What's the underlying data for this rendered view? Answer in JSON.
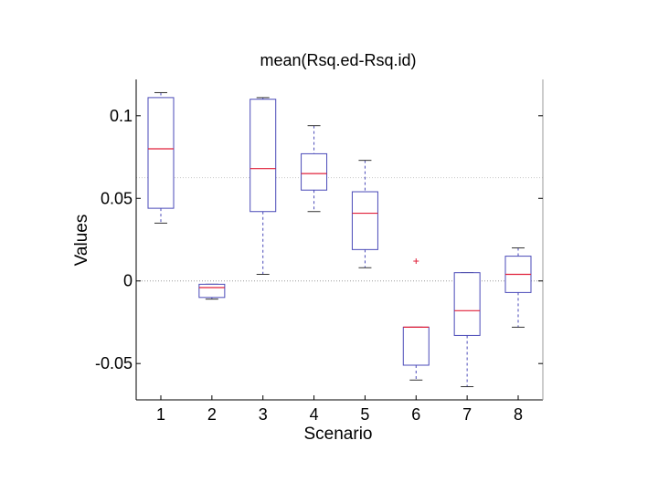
{
  "chart_data": {
    "type": "box",
    "title": "mean(Rsq.ed-Rsq.id)",
    "xlabel": "Scenario",
    "ylabel": "Values",
    "ylim": [
      -0.072,
      0.122
    ],
    "yticks": [
      -0.05,
      0,
      0.05,
      0.1
    ],
    "ytick_labels": [
      "-0.05",
      "0",
      "0.05",
      "0.1"
    ],
    "reference_lines": [
      0.0625,
      0
    ],
    "colors": {
      "box": "#4a4ab8",
      "median": "#e0203a",
      "whisker": "#4a4ab8",
      "outlier": "#e0203a",
      "axis": "#000000"
    },
    "categories": [
      "1",
      "2",
      "3",
      "4",
      "5",
      "6",
      "7",
      "8"
    ],
    "boxes": [
      {
        "label": "1",
        "min": 0.035,
        "q1": 0.044,
        "median": 0.08,
        "q3": 0.111,
        "max": 0.114
      },
      {
        "label": "2",
        "min": -0.011,
        "q1": -0.01,
        "median": -0.004,
        "q3": -0.002,
        "max": -0.002
      },
      {
        "label": "3",
        "min": 0.004,
        "q1": 0.042,
        "median": 0.068,
        "q3": 0.11,
        "max": 0.111
      },
      {
        "label": "4",
        "min": 0.042,
        "q1": 0.055,
        "median": 0.065,
        "q3": 0.077,
        "max": 0.094
      },
      {
        "label": "5",
        "min": 0.008,
        "q1": 0.019,
        "median": 0.041,
        "q3": 0.054,
        "max": 0.073
      },
      {
        "label": "6",
        "min": -0.06,
        "q1": -0.051,
        "median": -0.028,
        "q3": -0.028,
        "max": -0.028,
        "outliers": [
          0.012
        ]
      },
      {
        "label": "7",
        "min": -0.064,
        "q1": -0.033,
        "median": -0.018,
        "q3": 0.005,
        "max": 0.005
      },
      {
        "label": "8",
        "min": -0.028,
        "q1": -0.007,
        "median": 0.004,
        "q3": 0.015,
        "max": 0.02
      }
    ]
  }
}
